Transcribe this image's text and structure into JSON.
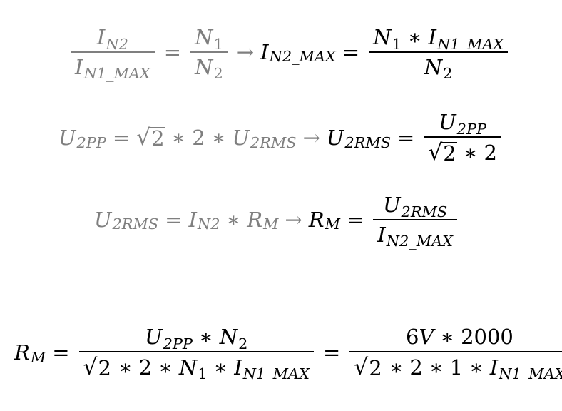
{
  "symbols": {
    "I": "I",
    "N": "N",
    "U": "U",
    "R": "R",
    "V": "V",
    "sqrt": "√",
    "mul": "∗",
    "eq": "=",
    "arrow": "→"
  },
  "subscripts": {
    "N2": "N2",
    "N1_MAX": "N1_MAX",
    "N2_MAX": "N2_MAX",
    "one": "1",
    "two": "2",
    "2PP": "2PP",
    "2RMS": "2RMS",
    "M": "M"
  },
  "numbers": {
    "two": "2",
    "one": "1",
    "six": "6",
    "two_thousand": "2000"
  },
  "colors": {
    "given": "#7f7f7f",
    "result": "#000000"
  }
}
